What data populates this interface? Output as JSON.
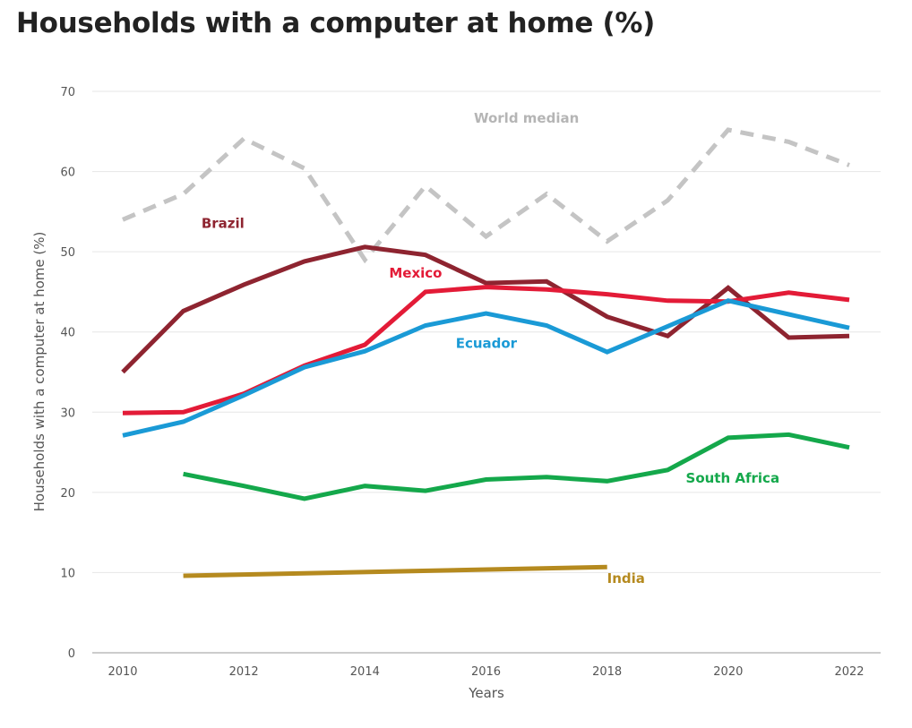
{
  "chart_data": {
    "type": "line",
    "title": "Households with a computer at home (%)",
    "xlabel": "Years",
    "ylabel": "Households with a computer at home (%)",
    "xlim": [
      2010,
      2022
    ],
    "ylim": [
      0,
      70
    ],
    "x_ticks": [
      2010,
      2012,
      2014,
      2016,
      2018,
      2020,
      2022
    ],
    "y_ticks": [
      0,
      10,
      20,
      30,
      40,
      50,
      60,
      70
    ],
    "grid": "horizontal",
    "series": [
      {
        "name": "World median",
        "color": "#c4c4c4",
        "dashed": true,
        "points": [
          [
            2010,
            54.0
          ],
          [
            2011,
            57.2
          ],
          [
            2012,
            64.1
          ],
          [
            2013,
            60.4
          ],
          [
            2014,
            49.0
          ],
          [
            2015,
            58.2
          ],
          [
            2016,
            51.9
          ],
          [
            2017,
            57.2
          ],
          [
            2018,
            51.3
          ],
          [
            2019,
            56.4
          ],
          [
            2020,
            65.2
          ],
          [
            2021,
            63.7
          ],
          [
            2022,
            60.8
          ]
        ]
      },
      {
        "name": "Brazil",
        "color": "#8e2430",
        "dashed": false,
        "points": [
          [
            2010,
            35.0
          ],
          [
            2011,
            42.6
          ],
          [
            2012,
            45.9
          ],
          [
            2013,
            48.8
          ],
          [
            2014,
            50.6
          ],
          [
            2015,
            49.6
          ],
          [
            2016,
            46.1
          ],
          [
            2017,
            46.3
          ],
          [
            2018,
            41.9
          ],
          [
            2019,
            39.5
          ],
          [
            2020,
            45.5
          ],
          [
            2021,
            39.3
          ],
          [
            2022,
            39.5
          ]
        ]
      },
      {
        "name": "Mexico",
        "color": "#e31b37",
        "dashed": false,
        "points": [
          [
            2010,
            29.9
          ],
          [
            2011,
            30.0
          ],
          [
            2012,
            32.3
          ],
          [
            2013,
            35.8
          ],
          [
            2014,
            38.4
          ],
          [
            2015,
            45.0
          ],
          [
            2016,
            45.6
          ],
          [
            2017,
            45.3
          ],
          [
            2018,
            44.7
          ],
          [
            2019,
            43.9
          ],
          [
            2020,
            43.8
          ],
          [
            2021,
            44.9
          ],
          [
            2022,
            44.0
          ]
        ]
      },
      {
        "name": "Ecuador",
        "color": "#1a9ad6",
        "dashed": false,
        "points": [
          [
            2010,
            27.1
          ],
          [
            2011,
            28.8
          ],
          [
            2012,
            32.1
          ],
          [
            2013,
            35.6
          ],
          [
            2014,
            37.6
          ],
          [
            2015,
            40.8
          ],
          [
            2016,
            42.3
          ],
          [
            2017,
            40.8
          ],
          [
            2018,
            37.5
          ],
          [
            2019,
            40.7
          ],
          [
            2020,
            43.9
          ],
          [
            2021,
            42.2
          ],
          [
            2022,
            40.5
          ]
        ]
      },
      {
        "name": "South Africa",
        "color": "#14a84b",
        "dashed": false,
        "points": [
          [
            2011,
            22.3
          ],
          [
            2012,
            20.8
          ],
          [
            2013,
            19.2
          ],
          [
            2014,
            20.8
          ],
          [
            2015,
            20.2
          ],
          [
            2016,
            21.6
          ],
          [
            2017,
            21.9
          ],
          [
            2018,
            21.4
          ],
          [
            2019,
            22.8
          ],
          [
            2020,
            26.8
          ],
          [
            2021,
            27.2
          ],
          [
            2022,
            25.6
          ]
        ]
      },
      {
        "name": "India",
        "color": "#b58a1f",
        "dashed": false,
        "points": [
          [
            2011,
            9.6
          ],
          [
            2018,
            10.7
          ]
        ]
      }
    ],
    "annotations": [
      {
        "text": "World median",
        "x": 2015.8,
        "y": 66.1,
        "color": "#b5b5b5"
      },
      {
        "text": "Brazil",
        "x": 2011.3,
        "y": 53.0,
        "color": "#8e2430"
      },
      {
        "text": "Mexico",
        "x": 2014.4,
        "y": 46.8,
        "color": "#e31b37"
      },
      {
        "text": "Ecuador",
        "x": 2015.5,
        "y": 38.0,
        "color": "#1a9ad6"
      },
      {
        "text": "South Africa",
        "x": 2019.3,
        "y": 21.2,
        "color": "#14a84b"
      },
      {
        "text": "India",
        "x": 2018.0,
        "y": 8.7,
        "color": "#b58a1f"
      }
    ]
  }
}
